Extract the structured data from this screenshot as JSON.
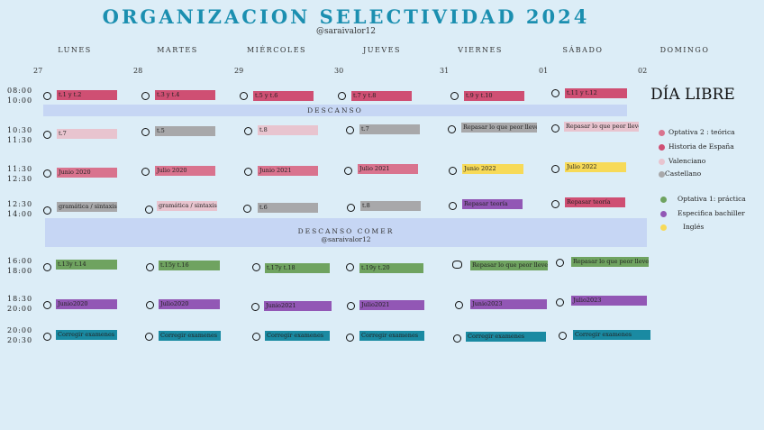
{
  "header": {
    "title": "ORGANIZACION SELECTIVIDAD 2024",
    "handle": "@saraivalor12"
  },
  "days": [
    "LUNES",
    "MARTES",
    "MIÉRCOLES",
    "JUEVES",
    "VIERNES",
    "SÁBADO",
    "DOMINGO"
  ],
  "dates": [
    "27",
    "28",
    "29",
    "30",
    "31",
    "01",
    "02"
  ],
  "times": {
    "t1a": "08:00",
    "t1b": "10:00",
    "t2a": "10:30",
    "t2b": "11:30",
    "t3a": "11:30",
    "t3b": "12:30",
    "t4a": "12:30",
    "t4b": "14:00",
    "t5a": "16:00",
    "t5b": "18:00",
    "t6a": "18:30",
    "t6b": "20:00",
    "t7a": "20:00",
    "t7b": "20:30"
  },
  "bands": {
    "descanso": "DESCANSO",
    "comer": "DESCANSO COMER",
    "comer_handle": "@saraivalor12"
  },
  "sunday": "DÍA LIBRE",
  "rows": {
    "r1": [
      "t.1 y t.2",
      "t.3 y t.4",
      "t.5 y t.6",
      "t.7 y t.8",
      "t.9 y t.10",
      "t.11 y t.12"
    ],
    "r2": [
      "t.7",
      "t.5",
      "t.8",
      "t.7",
      "Repasar lo que peor lleve.",
      "Repasar lo que peor lleve."
    ],
    "r3": [
      "Junio 2020",
      "Julio 2020",
      "Junio 2021",
      "Julio 2021",
      "Junio 2022",
      "Julio 2022"
    ],
    "r4": [
      "gramática / sintaxis",
      "gramática / sintaxis",
      "t.6",
      "t.8",
      "Repasar teoría",
      "Repasar teoría"
    ],
    "r5": [
      "t.13y t.14",
      "t.15y t.16",
      "t.17y t.18",
      "t.19y t.20",
      "Repasar lo que peor lleve.",
      "Repasar lo que peor lleve."
    ],
    "r6": [
      "Junio2020",
      "Julio2020",
      "Junio2021",
      "Julio2021",
      "Junio2023",
      "Julio2023"
    ],
    "r7": [
      "Corregir examenes",
      "Corregir examenes",
      "Corregir examenes",
      "Corregir examenes",
      "Corregir examenes",
      "Corregir examenes"
    ]
  },
  "legend": {
    "teorica": "Optativa 2 : teórica",
    "historia": "Historia de España",
    "valenciano": "Valenciano",
    "castellano": "Castellano",
    "practica": "Optativa 1: práctica",
    "bachiller": "Especifica bachiller",
    "ingles": "Inglés"
  },
  "colors": {
    "title": "#1b8fb0",
    "teorica": "#d9738e",
    "historia": "#cf4f73",
    "valenciano": "#e8c4cf",
    "castellano": "#a8a8aa",
    "practica": "#6fa360",
    "bachiller": "#9257b5",
    "ingles": "#f7da58",
    "teal": "#1a8aa2",
    "band": "#c6d6f4"
  }
}
